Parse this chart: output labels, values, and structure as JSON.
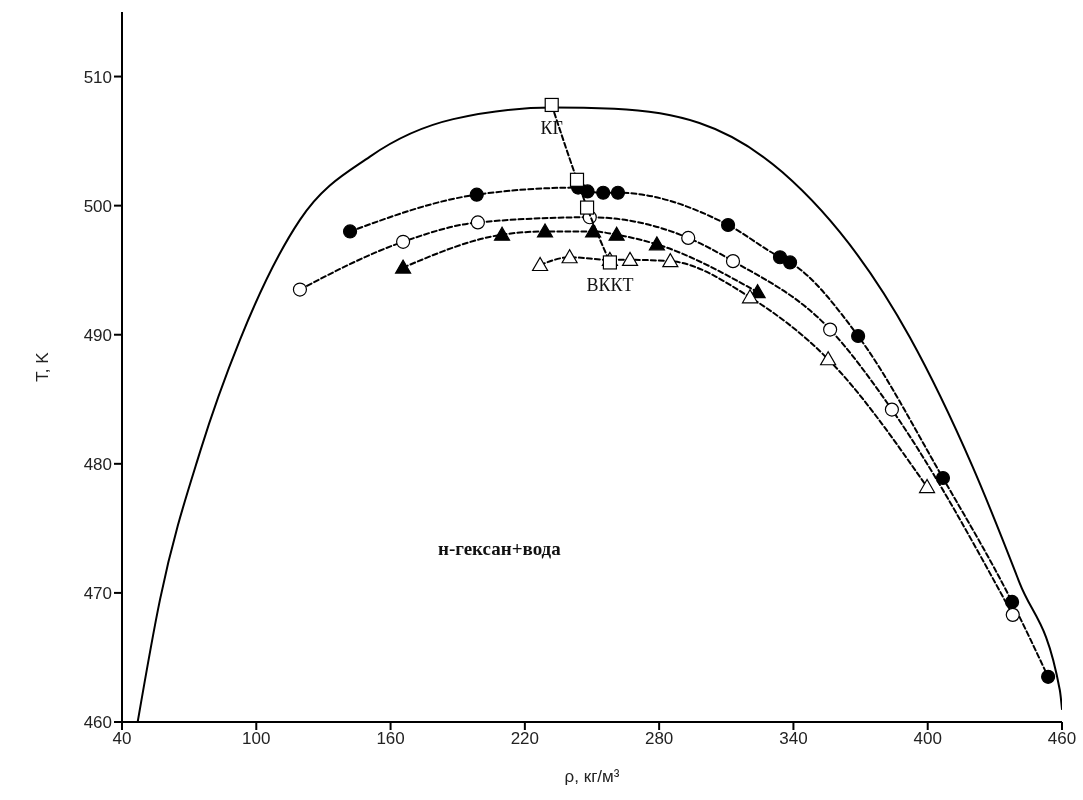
{
  "chart_data": {
    "type": "line",
    "xlabel": "ρ, кг/м³",
    "ylabel": "T, K",
    "xlim": [
      40,
      460
    ],
    "ylim": [
      460,
      515
    ],
    "xticks": [
      40,
      100,
      160,
      220,
      280,
      340,
      400,
      460
    ],
    "yticks": [
      460,
      470,
      480,
      490,
      500,
      510
    ],
    "annotations": [
      {
        "text": "КГ",
        "x": 232,
        "y": 507.8
      },
      {
        "text": "ВККТ",
        "x": 258,
        "y": 495.6
      },
      "н-гексан+вода"
    ],
    "series": [
      {
        "color": "#000000",
        "marker": "none",
        "line_style": "solid",
        "x": [
          47,
          57,
          75,
          92.7,
          119.5,
          150.8,
          188,
          232.6,
          260,
          298,
          335,
          392,
          420,
          441,
          459,
          460
        ],
        "values": [
          460,
          469.5,
          481,
          489.6,
          498.9,
          503.8,
          506.7,
          507.6,
          507.5,
          506.4,
          502.6,
          489.8,
          479.8,
          470.8,
          462.5,
          461
        ]
      },
      {
        "color": "#000000",
        "marker": "circle",
        "line_style": "dashed",
        "x": [
          141.9,
          198.5,
          243.8,
          248,
          255,
          261.6,
          310.8,
          334,
          338.5,
          368.9,
          406.8,
          437.7,
          453.8
        ],
        "values": [
          498,
          500.85,
          501.4,
          501.1,
          501,
          501,
          498.5,
          496,
          495.6,
          489.9,
          478.9,
          469.3,
          463.5
        ]
      },
      {
        "color": "#000000",
        "colors": [
          "#ffffff",
          "#ffffff",
          "#ffffff",
          "#ffffff",
          "#ffffff",
          "#ffffff",
          "#ffffff",
          "#ffffff",
          "#ffffff"
        ],
        "marker": "circle",
        "line_style": "dashed",
        "x": [
          119.5,
          165.6,
          199,
          249,
          293,
          313,
          356.4,
          384,
          438
        ],
        "values": [
          493.5,
          497.2,
          498.7,
          499.1,
          497.5,
          495.7,
          490.4,
          484.2,
          468.3
        ]
      },
      {
        "color": "#000000",
        "marker": "triangle",
        "line_style": "dashed",
        "x": [
          165.6,
          209.8,
          229,
          250.5,
          261,
          279,
          324
        ],
        "values": [
          495.2,
          497.75,
          498,
          498,
          497.75,
          497,
          493.3
        ]
      },
      {
        "color": "#000000",
        "colors": [
          "#ffffff",
          "#ffffff",
          "#ffffff",
          "#ffffff",
          "#ffffff",
          "#ffffff",
          "#ffffff",
          "#ffffff"
        ],
        "marker": "triangle",
        "line_style": "dashed",
        "x": [
          226.8,
          240,
          258,
          267,
          285,
          320.6,
          355.5,
          399.7
        ],
        "values": [
          495.4,
          496,
          495.8,
          495.8,
          495.7,
          492.9,
          488.1,
          478.2
        ]
      },
      {
        "color": "#000000",
        "colors": [
          "#ffffff",
          "#ffffff",
          "#ffffff",
          "#ffffff"
        ],
        "marker": "square",
        "line_style": "dashed",
        "x": [
          232,
          243.3,
          247.8,
          258
        ],
        "values": [
          507.8,
          502,
          499.85,
          495.6
        ]
      }
    ]
  }
}
